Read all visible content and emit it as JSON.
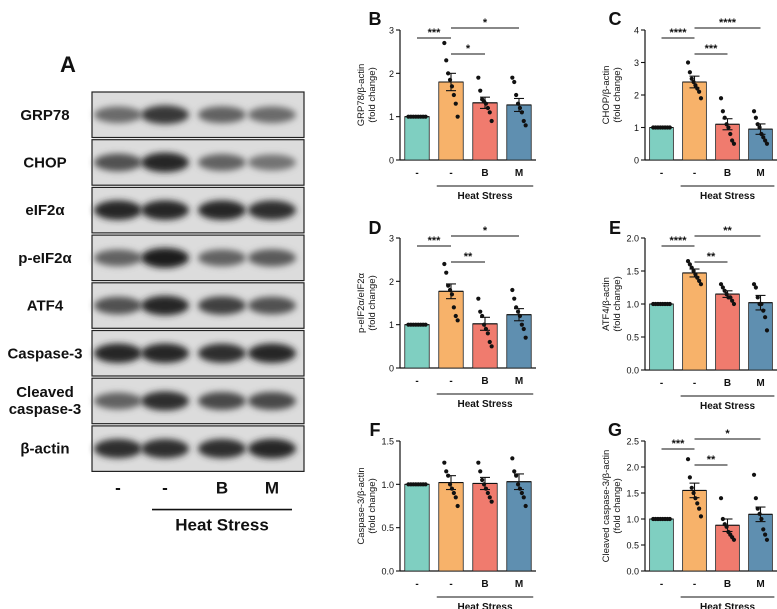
{
  "blot": {
    "panel_letter": "A",
    "rows": [
      {
        "label": "GRP78",
        "intensity": [
          0.55,
          0.85,
          0.6,
          0.55
        ]
      },
      {
        "label": "CHOP",
        "intensity": [
          0.7,
          0.95,
          0.6,
          0.5
        ]
      },
      {
        "label": "eIF2α",
        "intensity": [
          0.95,
          0.95,
          0.95,
          0.9
        ]
      },
      {
        "label": "p-eIF2α",
        "intensity": [
          0.6,
          1.0,
          0.6,
          0.65
        ]
      },
      {
        "label": "ATF4",
        "intensity": [
          0.7,
          0.95,
          0.8,
          0.7
        ]
      },
      {
        "label": "Caspase-3",
        "intensity": [
          0.95,
          0.95,
          0.9,
          0.95
        ]
      },
      {
        "label": "Cleaved caspase-3",
        "label_lines": [
          "Cleaved",
          "caspase-3"
        ],
        "intensity": [
          0.6,
          0.9,
          0.75,
          0.75
        ]
      },
      {
        "label": "β-actin",
        "intensity": [
          0.9,
          0.9,
          0.9,
          0.95
        ]
      }
    ],
    "lane_labels": [
      "-",
      "-",
      "B",
      "M"
    ],
    "group_label": "Heat Stress"
  },
  "colors": [
    "#7fcfc1",
    "#f7b26a",
    "#f07b6e",
    "#5f8fb0"
  ],
  "chart_data": [
    {
      "panel": "B",
      "type": "bar",
      "ylabel_lines": [
        "GRP78/β-actin",
        "(fold change)"
      ],
      "categories": [
        "-",
        "-",
        "B",
        "M"
      ],
      "group_label": "Heat Stress",
      "ylim": [
        0,
        3
      ],
      "yticks": [
        "0",
        "1",
        "2",
        "3"
      ],
      "ytick_values": [
        0,
        1,
        2,
        3
      ],
      "values": [
        1.0,
        1.8,
        1.32,
        1.27
      ],
      "errors": [
        0.0,
        0.2,
        0.13,
        0.15
      ],
      "points": [
        [
          1,
          1,
          1,
          1,
          1,
          1,
          1,
          1
        ],
        [
          2.7,
          2.3,
          2.0,
          1.85,
          1.7,
          1.5,
          1.3,
          1.0
        ],
        [
          1.9,
          1.6,
          1.4,
          1.35,
          1.3,
          1.2,
          1.1,
          0.9
        ],
        [
          1.9,
          1.8,
          1.5,
          1.3,
          1.2,
          1.1,
          0.9,
          0.8
        ]
      ],
      "significance": [
        {
          "from": 0,
          "to": 1,
          "label": "***"
        },
        {
          "from": 1,
          "to": 2,
          "label": "*"
        },
        {
          "from": 1,
          "to": 3,
          "label": "*"
        }
      ]
    },
    {
      "panel": "C",
      "type": "bar",
      "ylabel_lines": [
        "CHOP/β-actin",
        "(fold change)"
      ],
      "categories": [
        "-",
        "-",
        "B",
        "M"
      ],
      "group_label": "Heat Stress",
      "ylim": [
        0,
        4
      ],
      "yticks": [
        "0",
        "1",
        "2",
        "3",
        "4"
      ],
      "ytick_values": [
        0,
        1,
        2,
        3,
        4
      ],
      "values": [
        1.0,
        2.4,
        1.1,
        0.95
      ],
      "errors": [
        0.0,
        0.18,
        0.17,
        0.16
      ],
      "points": [
        [
          1,
          1,
          1,
          1,
          1,
          1,
          1,
          1
        ],
        [
          3.0,
          2.7,
          2.5,
          2.4,
          2.3,
          2.2,
          2.1,
          1.9
        ],
        [
          1.9,
          1.5,
          1.3,
          1.1,
          1.0,
          0.8,
          0.6,
          0.5
        ],
        [
          1.5,
          1.3,
          1.1,
          1.0,
          0.8,
          0.7,
          0.6,
          0.5
        ]
      ],
      "significance": [
        {
          "from": 0,
          "to": 1,
          "label": "****"
        },
        {
          "from": 1,
          "to": 2,
          "label": "***"
        },
        {
          "from": 1,
          "to": 3,
          "label": "****"
        }
      ]
    },
    {
      "panel": "D",
      "type": "bar",
      "ylabel_lines": [
        "p-eIF2α/eIF2α",
        "(fold change)"
      ],
      "categories": [
        "-",
        "-",
        "B",
        "M"
      ],
      "group_label": "Heat Stress",
      "ylim": [
        0,
        3
      ],
      "yticks": [
        "0",
        "1",
        "2",
        "3"
      ],
      "ytick_values": [
        0,
        1,
        2,
        3
      ],
      "values": [
        1.0,
        1.77,
        1.02,
        1.23
      ],
      "errors": [
        0.0,
        0.17,
        0.15,
        0.14
      ],
      "points": [
        [
          1,
          1,
          1,
          1,
          1,
          1,
          1,
          1
        ],
        [
          2.4,
          2.2,
          1.9,
          1.8,
          1.7,
          1.4,
          1.2,
          1.1
        ],
        [
          1.6,
          1.3,
          1.2,
          1.0,
          0.9,
          0.8,
          0.6,
          0.5
        ],
        [
          1.8,
          1.6,
          1.4,
          1.3,
          1.2,
          1.0,
          0.9,
          0.7
        ]
      ],
      "significance": [
        {
          "from": 0,
          "to": 1,
          "label": "***"
        },
        {
          "from": 1,
          "to": 2,
          "label": "**"
        },
        {
          "from": 1,
          "to": 3,
          "label": "*"
        }
      ]
    },
    {
      "panel": "E",
      "type": "bar",
      "ylabel_lines": [
        "ATF4/β-actin",
        "(fold change)"
      ],
      "categories": [
        "-",
        "-",
        "B",
        "M"
      ],
      "group_label": "Heat Stress",
      "ylim": [
        0,
        2
      ],
      "yticks": [
        "0.0",
        "0.5",
        "1.0",
        "1.5",
        "2.0"
      ],
      "ytick_values": [
        0,
        0.5,
        1.0,
        1.5,
        2.0
      ],
      "values": [
        1.0,
        1.47,
        1.15,
        1.02
      ],
      "errors": [
        0.0,
        0.06,
        0.05,
        0.11
      ],
      "points": [
        [
          1,
          1,
          1,
          1,
          1,
          1,
          1,
          1
        ],
        [
          1.65,
          1.6,
          1.55,
          1.5,
          1.45,
          1.4,
          1.35,
          1.3
        ],
        [
          1.3,
          1.25,
          1.2,
          1.15,
          1.1,
          1.1,
          1.05,
          1.0
        ],
        [
          1.3,
          1.25,
          1.1,
          1.0,
          1.0,
          0.9,
          0.8,
          0.6
        ]
      ],
      "significance": [
        {
          "from": 0,
          "to": 1,
          "label": "****"
        },
        {
          "from": 1,
          "to": 2,
          "label": "**"
        },
        {
          "from": 1,
          "to": 3,
          "label": "**"
        }
      ]
    },
    {
      "panel": "F",
      "type": "bar",
      "ylabel_lines": [
        "Caspase-3/β-actin",
        "(fold change)"
      ],
      "categories": [
        "-",
        "-",
        "B",
        "M"
      ],
      "group_label": "Heat Stress",
      "ylim": [
        0,
        1.5
      ],
      "yticks": [
        "0.0",
        "0.5",
        "1.0",
        "1.5"
      ],
      "ytick_values": [
        0,
        0.5,
        1.0,
        1.5
      ],
      "values": [
        1.0,
        1.02,
        1.01,
        1.03
      ],
      "errors": [
        0.0,
        0.08,
        0.07,
        0.09
      ],
      "points": [
        [
          1,
          1,
          1,
          1,
          1,
          1,
          1,
          1
        ],
        [
          1.25,
          1.15,
          1.1,
          1.0,
          0.95,
          0.9,
          0.85,
          0.75
        ],
        [
          1.25,
          1.15,
          1.05,
          1.0,
          0.95,
          0.9,
          0.85,
          0.8
        ],
        [
          1.3,
          1.15,
          1.1,
          1.0,
          0.95,
          0.9,
          0.85,
          0.75
        ]
      ],
      "significance": []
    },
    {
      "panel": "G",
      "type": "bar",
      "ylabel_lines": [
        "Cleaved caspase-3/β-actin",
        "(fold change)"
      ],
      "categories": [
        "-",
        "-",
        "B",
        "M"
      ],
      "group_label": "Heat Stress",
      "ylim": [
        0,
        2.5
      ],
      "yticks": [
        "0.0",
        "0.5",
        "1.0",
        "1.5",
        "2.0",
        "2.5"
      ],
      "ytick_values": [
        0,
        0.5,
        1.0,
        1.5,
        2.0,
        2.5
      ],
      "values": [
        1.0,
        1.55,
        0.88,
        1.09
      ],
      "errors": [
        0.0,
        0.14,
        0.12,
        0.14
      ],
      "points": [
        [
          1,
          1,
          1,
          1,
          1,
          1,
          1,
          1
        ],
        [
          2.15,
          1.8,
          1.6,
          1.5,
          1.4,
          1.3,
          1.2,
          1.05
        ],
        [
          1.4,
          1.0,
          0.9,
          0.85,
          0.75,
          0.7,
          0.65,
          0.6
        ],
        [
          1.85,
          1.4,
          1.2,
          1.1,
          1.0,
          0.8,
          0.7,
          0.6
        ]
      ],
      "significance": [
        {
          "from": 0,
          "to": 1,
          "label": "***"
        },
        {
          "from": 1,
          "to": 2,
          "label": "**"
        },
        {
          "from": 1,
          "to": 3,
          "label": "*"
        }
      ]
    }
  ]
}
